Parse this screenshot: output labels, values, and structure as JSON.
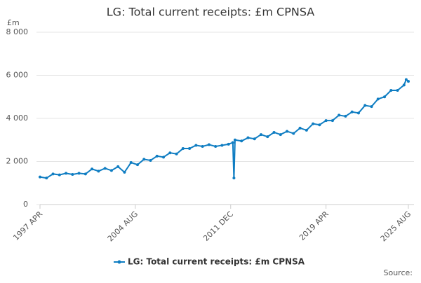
{
  "chart_data": {
    "type": "line",
    "title": "LG: Total current receipts: £m CPNSA",
    "y_label": "£m",
    "source": "Source:",
    "x": [
      "1997 APR",
      "1997 OCT",
      "1998 APR",
      "1998 OCT",
      "1999 APR",
      "1999 OCT",
      "2000 APR",
      "2000 OCT",
      "2001 APR",
      "2001 OCT",
      "2002 APR",
      "2002 OCT",
      "2003 APR",
      "2003 OCT",
      "2004 APR",
      "2004 OCT",
      "2005 APR",
      "2005 OCT",
      "2006 APR",
      "2006 OCT",
      "2007 APR",
      "2007 OCT",
      "2008 APR",
      "2008 OCT",
      "2009 APR",
      "2009 OCT",
      "2010 APR",
      "2010 OCT",
      "2011 APR",
      "2011 OCT",
      "2012 FEB",
      "2012 MAR",
      "2012 APR",
      "2012 OCT",
      "2013 APR",
      "2013 OCT",
      "2014 APR",
      "2014 OCT",
      "2015 APR",
      "2015 OCT",
      "2016 APR",
      "2016 OCT",
      "2017 APR",
      "2017 OCT",
      "2018 APR",
      "2018 OCT",
      "2019 APR",
      "2019 OCT",
      "2020 APR",
      "2020 OCT",
      "2021 APR",
      "2021 OCT",
      "2022 APR",
      "2022 OCT",
      "2023 APR",
      "2023 OCT",
      "2024 APR",
      "2024 OCT",
      "2025 APR",
      "2025 JUN",
      "2025 AUG"
    ],
    "series": [
      {
        "name": "LG: Total current receipts: £m CPNSA",
        "color": "#0f7dc2",
        "values": [
          1280,
          1230,
          1420,
          1380,
          1450,
          1400,
          1450,
          1420,
          1650,
          1550,
          1680,
          1580,
          1760,
          1500,
          1950,
          1850,
          2100,
          2050,
          2250,
          2200,
          2400,
          2350,
          2600,
          2600,
          2750,
          2700,
          2780,
          2700,
          2750,
          2800,
          2880,
          1230,
          3000,
          2950,
          3100,
          3050,
          3250,
          3150,
          3350,
          3250,
          3400,
          3300,
          3550,
          3450,
          3750,
          3700,
          3900,
          3900,
          4150,
          4100,
          4300,
          4250,
          4600,
          4550,
          4900,
          5000,
          5300,
          5300,
          5550,
          5800,
          5720
        ]
      }
    ],
    "xticks": [
      "1997 APR",
      "2004 AUG",
      "2011 DEC",
      "2019 APR",
      "2025 AUG"
    ],
    "ylim": [
      0,
      8000
    ],
    "yticks": [
      {
        "value": 0,
        "label": "0"
      },
      {
        "value": 2000,
        "label": "2 000"
      },
      {
        "value": 4000,
        "label": "4 000"
      },
      {
        "value": 6000,
        "label": "6 000"
      },
      {
        "value": 8000,
        "label": "8 000"
      }
    ],
    "grid": true
  }
}
